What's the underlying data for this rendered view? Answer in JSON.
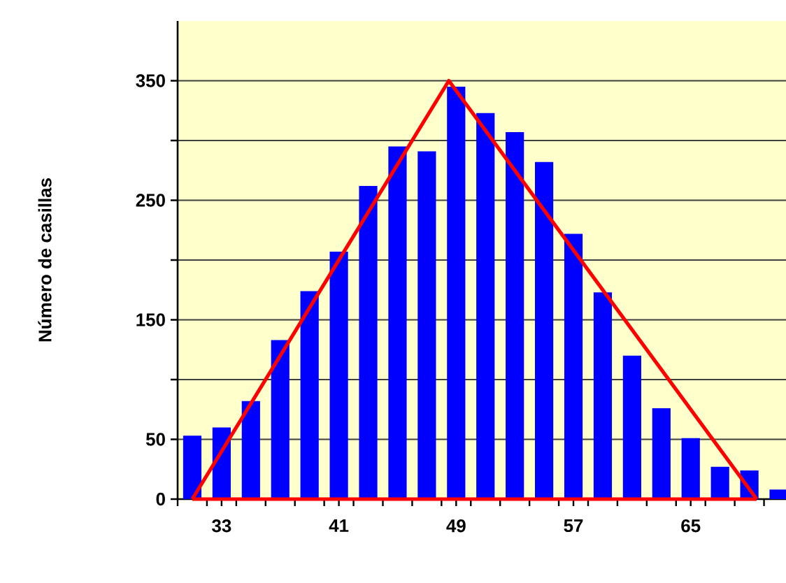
{
  "chart_data": {
    "type": "bar",
    "ylabel": "Número de casillas",
    "x": [
      31,
      33,
      35,
      37,
      39,
      41,
      43,
      45,
      47,
      49,
      51,
      53,
      55,
      57,
      59,
      61,
      63,
      65,
      67,
      69,
      71
    ],
    "xlim": [
      30,
      71.5
    ],
    "ylim": [
      0,
      400
    ],
    "xticks": [
      {
        "value": 30,
        "label": null
      },
      {
        "value": 32,
        "label": null
      },
      33,
      {
        "value": 34,
        "label": null
      },
      {
        "value": 36,
        "label": null
      },
      {
        "value": 38,
        "label": null
      },
      {
        "value": 40,
        "label": null
      },
      41,
      {
        "value": 42,
        "label": null
      },
      {
        "value": 44,
        "label": null
      },
      {
        "value": 46,
        "label": null
      },
      {
        "value": 48,
        "label": null
      },
      49,
      {
        "value": 50,
        "label": null
      },
      {
        "value": 52,
        "label": null
      },
      {
        "value": 54,
        "label": null
      },
      {
        "value": 56,
        "label": null
      },
      57,
      {
        "value": 58,
        "label": null
      },
      {
        "value": 60,
        "label": null
      },
      {
        "value": 62,
        "label": null
      },
      {
        "value": 64,
        "label": null
      },
      65,
      {
        "value": 66,
        "label": null
      },
      {
        "value": 68,
        "label": null
      },
      {
        "value": 70,
        "label": null
      }
    ],
    "yticks": [
      0,
      50,
      {
        "value": 100,
        "label": null
      },
      150,
      {
        "value": 200,
        "label": null
      },
      250,
      {
        "value": 300,
        "label": null
      },
      350
    ],
    "grid": "y",
    "series": [
      {
        "color": "#0000ff",
        "values": [
          53,
          60,
          82,
          133,
          174,
          207,
          262,
          295,
          291,
          345,
          323,
          307,
          282,
          222,
          173,
          120,
          76,
          51,
          27,
          24,
          8
        ]
      },
      {
        "type": "line",
        "color": "#ff0000",
        "x": [
          31,
          48.5,
          69.5
        ],
        "values": [
          0,
          350,
          0
        ]
      },
      {
        "type": "line",
        "color": "#ff0000",
        "x": [
          31,
          69.5
        ],
        "values": [
          0,
          0
        ]
      }
    ]
  }
}
